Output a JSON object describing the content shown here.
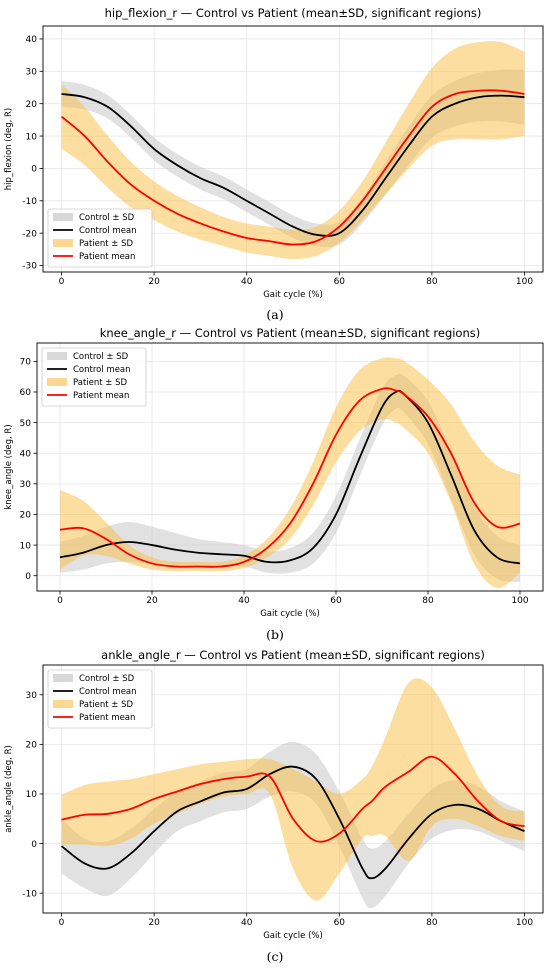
{
  "figure": {
    "captions": [
      "(a)",
      "(b)",
      "(c)"
    ]
  },
  "chart_data": [
    {
      "type": "line",
      "title": "hip_flexion_r — Control vs Patient (mean±SD, significant regions)",
      "xlabel": "Gait cycle (%)",
      "ylabel": "hip_flexion (deg, R)",
      "xlim": [
        -4,
        104
      ],
      "ylim": [
        -32,
        44
      ],
      "xticks": [
        0,
        20,
        40,
        60,
        80,
        100
      ],
      "yticks": [
        -30,
        -20,
        -10,
        0,
        10,
        20,
        30,
        40
      ],
      "grid": true,
      "legend_position": "lower-left",
      "legend": [
        "Control ± SD",
        "Control mean",
        "Patient ± SD",
        "Patient mean"
      ],
      "x": [
        0,
        5,
        10,
        15,
        20,
        25,
        30,
        35,
        40,
        45,
        50,
        55,
        60,
        65,
        70,
        75,
        80,
        85,
        90,
        95,
        100
      ],
      "series": [
        {
          "name": "Control mean",
          "color": "#000000",
          "values": [
            23,
            22,
            19,
            13,
            6,
            1,
            -3,
            -6,
            -10,
            -14,
            -18,
            -20.5,
            -20,
            -13,
            -3,
            7,
            16,
            20,
            22,
            22.5,
            22
          ],
          "sd": [
            4,
            3.8,
            3.6,
            3.5,
            3.5,
            3.5,
            3.5,
            3.5,
            3.5,
            3.5,
            3.5,
            3.5,
            3.5,
            4,
            5,
            6,
            6.5,
            7,
            7.5,
            8,
            8.5
          ]
        },
        {
          "name": "Patient mean",
          "color": "#ff0000",
          "values": [
            16,
            10,
            2,
            -5,
            -10,
            -14,
            -17,
            -19.5,
            -21.5,
            -22.5,
            -23.5,
            -22.5,
            -18,
            -10,
            0,
            10,
            19,
            23,
            24,
            24,
            23
          ],
          "sd": [
            10,
            9,
            8,
            7,
            6,
            5.5,
            5,
            4.5,
            4.5,
            4.5,
            4.5,
            4.5,
            5,
            6,
            8,
            10,
            12,
            14,
            15,
            15,
            13
          ]
        }
      ]
    },
    {
      "type": "line",
      "title": "knee_angle_r — Control vs Patient (mean±SD, significant regions)",
      "xlabel": "Gait cycle (%)",
      "ylabel": "knee_angle (deg, R)",
      "xlim": [
        -5,
        105
      ],
      "ylim": [
        -5,
        76
      ],
      "xticks": [
        0,
        20,
        40,
        60,
        80,
        100
      ],
      "yticks": [
        0,
        10,
        20,
        30,
        40,
        50,
        60,
        70
      ],
      "grid": true,
      "legend_position": "upper-left",
      "legend": [
        "Control ± SD",
        "Control mean",
        "Patient ± SD",
        "Patient mean"
      ],
      "x": [
        0,
        5,
        10,
        15,
        20,
        25,
        30,
        35,
        40,
        45,
        50,
        55,
        60,
        65,
        70,
        73,
        75,
        80,
        85,
        90,
        95,
        100
      ],
      "series": [
        {
          "name": "Control mean",
          "color": "#000000",
          "values": [
            6,
            7.5,
            10,
            11,
            10,
            8.5,
            7.5,
            7,
            6.5,
            4.5,
            5,
            9,
            20,
            38,
            55,
            60,
            59,
            50,
            33,
            15,
            6,
            4
          ],
          "sd": [
            5,
            5.5,
            6,
            6.5,
            6,
            5.5,
            4.5,
            4,
            3.5,
            3.5,
            4,
            5,
            6,
            6,
            6,
            5.5,
            6,
            7,
            8,
            8,
            7,
            6
          ]
        },
        {
          "name": "Patient mean",
          "color": "#ff0000",
          "values": [
            15,
            15.5,
            12,
            7,
            4,
            3,
            3,
            3,
            4.5,
            9,
            17,
            30,
            46,
            57,
            61,
            60.5,
            59,
            52,
            40,
            24,
            16,
            17
          ],
          "sd": [
            13,
            9,
            5.5,
            3,
            2,
            1.5,
            1.5,
            1.5,
            2,
            3,
            5,
            7,
            9,
            10,
            10,
            10.5,
            11,
            12,
            16,
            20,
            20,
            16
          ]
        }
      ]
    },
    {
      "type": "line",
      "title": "ankle_angle_r — Control vs Patient (mean±SD, significant regions)",
      "xlabel": "Gait cycle (%)",
      "ylabel": "ankle_angle (deg, R)",
      "xlim": [
        -4,
        104
      ],
      "ylim": [
        -14,
        36
      ],
      "xticks": [
        0,
        20,
        40,
        60,
        80,
        100
      ],
      "yticks": [
        -10,
        0,
        10,
        20,
        30
      ],
      "grid": true,
      "legend_position": "upper-left",
      "legend": [
        "Control ± SD",
        "Control mean",
        "Patient ± SD",
        "Patient mean"
      ],
      "x": [
        0,
        5,
        10,
        15,
        20,
        25,
        30,
        35,
        40,
        45,
        50,
        55,
        60,
        65,
        67,
        70,
        75,
        80,
        85,
        90,
        95,
        100
      ],
      "series": [
        {
          "name": "Control mean",
          "color": "#000000",
          "values": [
            -0.5,
            -4,
            -5,
            -2,
            2.5,
            6.5,
            8.5,
            10.3,
            11,
            14,
            15.5,
            13,
            5,
            -5,
            -7,
            -5,
            1,
            6,
            7.8,
            7,
            4.5,
            2.5
          ],
          "sd": [
            5.5,
            5,
            5.5,
            5,
            4.5,
            4,
            4,
            4,
            4,
            4.5,
            5,
            5,
            5.5,
            6,
            6,
            5.5,
            5,
            5,
            5,
            4.5,
            4,
            4
          ]
        },
        {
          "name": "Patient mean",
          "color": "#ff0000",
          "values": [
            4.8,
            5.8,
            6,
            7,
            9,
            10.5,
            12,
            13,
            13.5,
            13.5,
            5,
            0.5,
            2,
            7,
            8.5,
            11.5,
            14.5,
            17.5,
            14,
            8.5,
            4.5,
            3.5
          ],
          "sd": [
            5,
            6,
            6.5,
            6,
            5,
            4.5,
            4,
            3.5,
            3.5,
            3.5,
            10,
            12,
            8,
            6,
            7,
            10,
            18,
            14,
            9,
            5,
            3,
            3
          ]
        }
      ]
    }
  ]
}
